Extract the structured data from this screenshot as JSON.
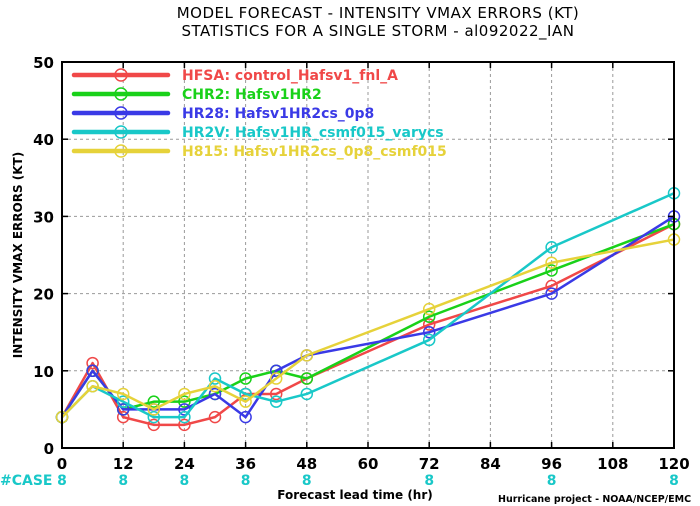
{
  "chart_data": {
    "type": "line",
    "title": "MODEL FORECAST - INTENSITY VMAX ERRORS (KT)",
    "subtitle": "STATISTICS FOR A SINGLE STORM - al092022_IAN",
    "xlabel": "Forecast lead time (hr)",
    "ylabel": "INTENSITY VMAX ERRORS (KT)",
    "xlim": [
      0,
      120
    ],
    "ylim": [
      0,
      50
    ],
    "x_ticks": [
      "0",
      "12",
      "24",
      "36",
      "48",
      "60",
      "72",
      "84",
      "96",
      "108",
      "120"
    ],
    "y_ticks": [
      "0",
      "10",
      "20",
      "30",
      "40",
      "50"
    ],
    "grid": true,
    "legend_position": "top-left",
    "case_label": "#CASE",
    "case_counts": [
      {
        "x": 0,
        "label": "8"
      },
      {
        "x": 12,
        "label": "8"
      },
      {
        "x": 24,
        "label": "8"
      },
      {
        "x": 36,
        "label": "8"
      },
      {
        "x": 48,
        "label": "8"
      },
      {
        "x": 72,
        "label": "8"
      },
      {
        "x": 96,
        "label": "8"
      },
      {
        "x": 120,
        "label": "8"
      }
    ],
    "credit": "Hurricane project - NOAA/NCEP/EMC",
    "series": [
      {
        "name": "HFSA: control_Hafsv1_fnl_A",
        "color": "#f04848",
        "x": [
          0,
          6,
          12,
          18,
          24,
          30,
          36,
          42,
          48,
          72,
          96,
          120
        ],
        "values": [
          4,
          11,
          4,
          3,
          3,
          4,
          7,
          7,
          9,
          16,
          21,
          29
        ]
      },
      {
        "name": "CHR2: Hafsv1HR2",
        "color": "#19d119",
        "x": [
          0,
          6,
          12,
          18,
          24,
          30,
          36,
          42,
          48,
          72,
          96,
          120
        ],
        "values": [
          4,
          10,
          5,
          6,
          6,
          7,
          9,
          10,
          9,
          17,
          23,
          29
        ]
      },
      {
        "name": "HR28: Hafsv1HR2cs_0p8",
        "color": "#3a3ae6",
        "x": [
          0,
          6,
          12,
          18,
          24,
          30,
          36,
          42,
          48,
          72,
          96,
          120
        ],
        "values": [
          4,
          10,
          5,
          5,
          5,
          7,
          4,
          10,
          12,
          15,
          20,
          30
        ]
      },
      {
        "name": "HR2V: Hafsv1HR_csmf015_varycs",
        "color": "#19c8c8",
        "x": [
          0,
          6,
          12,
          18,
          24,
          30,
          36,
          42,
          48,
          72,
          96,
          120
        ],
        "values": [
          4,
          8,
          6,
          4,
          4,
          9,
          7,
          6,
          7,
          14,
          26,
          33
        ]
      },
      {
        "name": "H815: Hafsv1HR2cs_0p8_csmf015",
        "color": "#e6d23a",
        "x": [
          0,
          6,
          12,
          18,
          24,
          30,
          36,
          42,
          48,
          72,
          96,
          120
        ],
        "values": [
          4,
          8,
          7,
          5,
          7,
          8,
          6,
          9,
          12,
          18,
          24,
          27
        ]
      }
    ]
  }
}
